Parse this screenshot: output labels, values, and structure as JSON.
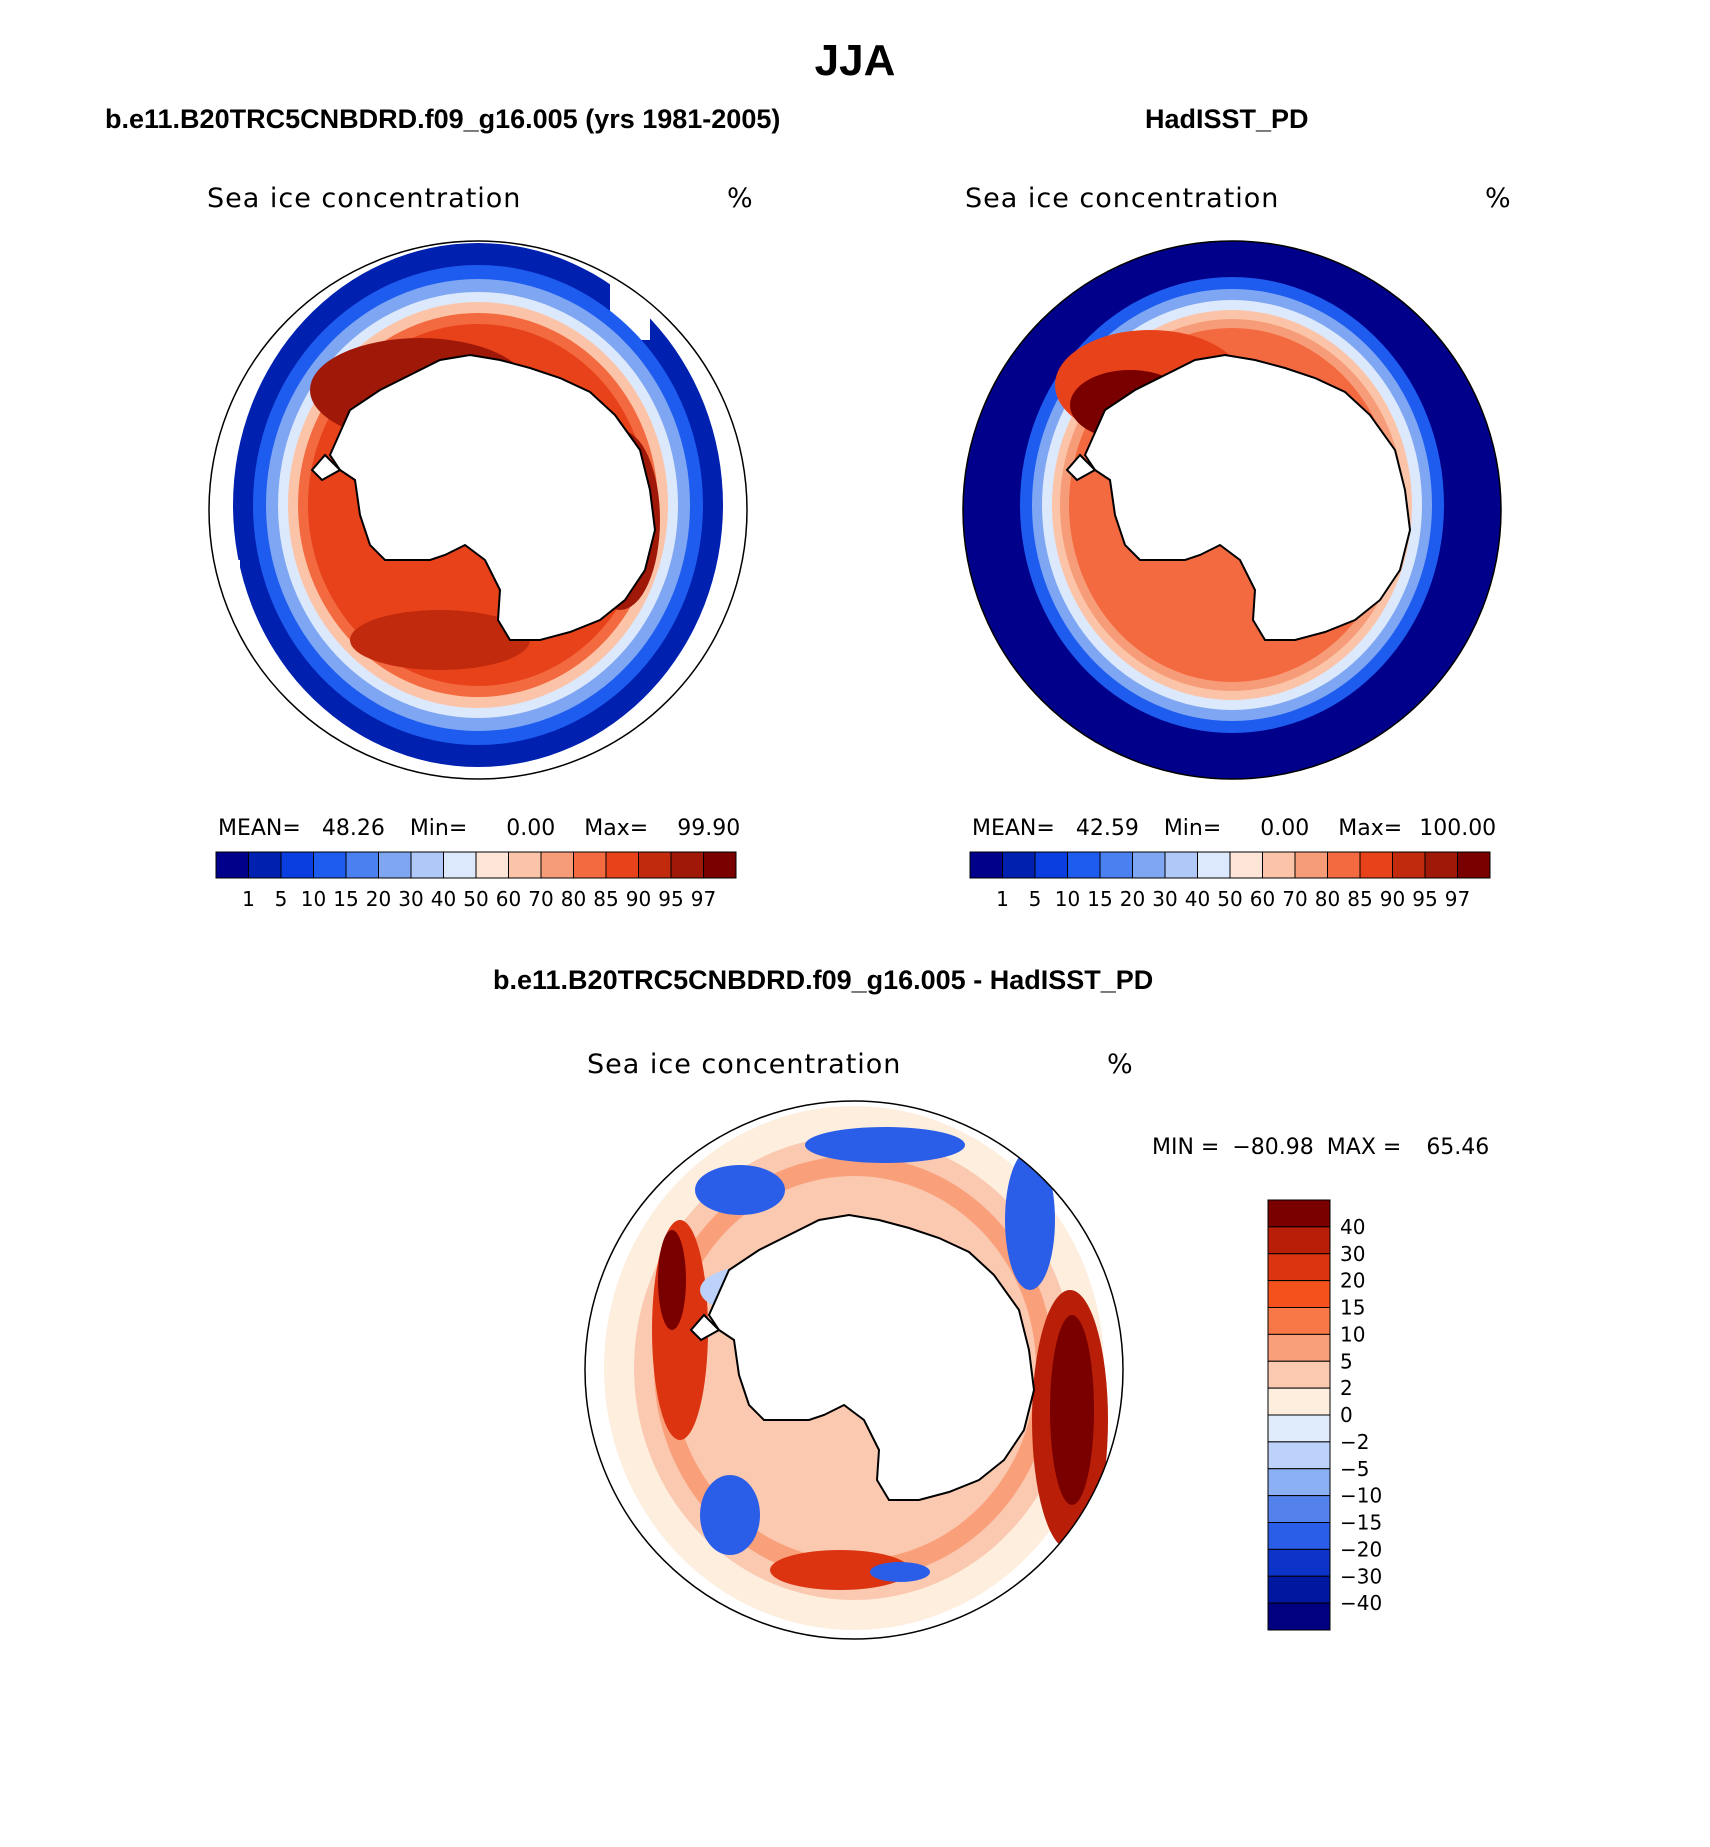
{
  "title": "JJA",
  "panels": {
    "model": {
      "title": "b.e11.B20TRC5CNBDRD.f09_g16.005 (yrs 1981-2005)",
      "label": "Sea ice concentration",
      "units": "%",
      "mean_label": "MEAN=",
      "mean_value": "48.26",
      "min_label": "Min=",
      "min_value": "0.00",
      "max_label": "Max=",
      "max_value": "99.90"
    },
    "obs": {
      "title": "HadISST_PD",
      "label": "Sea ice concentration",
      "units": "%",
      "mean_label": "MEAN=",
      "mean_value": "42.59",
      "min_label": "Min=",
      "min_value": "0.00",
      "max_label": "Max=",
      "max_value": "100.00"
    },
    "diff": {
      "title": "b.e11.B20TRC5CNBDRD.f09_g16.005 - HadISST_PD",
      "label": "Sea ice concentration",
      "units": "%",
      "min_label": "MIN =",
      "min_value": "−80.98",
      "max_label": "MAX =",
      "max_value": "65.46"
    }
  },
  "colorbar_conc": {
    "levels": [
      "1",
      "5",
      "10",
      "15",
      "20",
      "30",
      "40",
      "50",
      "60",
      "70",
      "80",
      "85",
      "90",
      "95",
      "97"
    ],
    "colors": [
      "#00008b",
      "#0020b0",
      "#0a3ee0",
      "#1e5cf0",
      "#4a80f0",
      "#7ea6f2",
      "#b0c8f8",
      "#dce8fc",
      "#fde6d8",
      "#fbc4a8",
      "#f79c78",
      "#f46a40",
      "#e8421a",
      "#c22a0e",
      "#a01808",
      "#7a0000"
    ]
  },
  "colorbar_diff": {
    "levels": [
      "40",
      "30",
      "20",
      "15",
      "10",
      "5",
      "2",
      "0",
      "−2",
      "−5",
      "−10",
      "−15",
      "−20",
      "−30",
      "−40"
    ],
    "colors": [
      "#7a0000",
      "#b81e08",
      "#dc3410",
      "#f4521c",
      "#f87848",
      "#f9a07a",
      "#fbc8b0",
      "#fdeede",
      "#e0ecfc",
      "#bcd2fa",
      "#8cb0f4",
      "#5482ec",
      "#2a5ee8",
      "#0c34c8",
      "#0018a0",
      "#000080"
    ]
  }
}
